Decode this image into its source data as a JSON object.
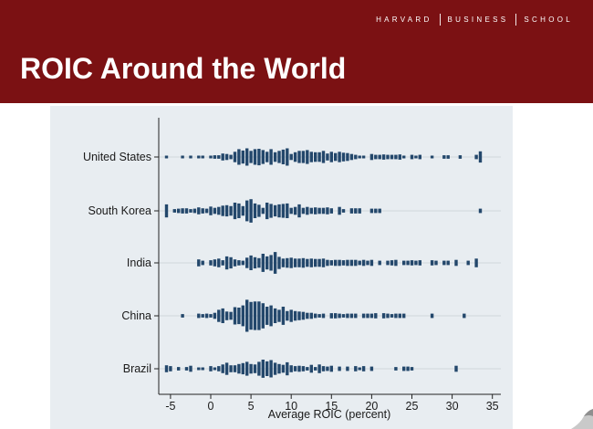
{
  "header": {
    "brand": [
      "HARVARD",
      "BUSINESS",
      "SCHOOL"
    ],
    "title": "ROIC Around the World",
    "color": "#7b1113"
  },
  "chart_data": {
    "type": "bar",
    "subtype": "dot-histogram",
    "xlabel": "Average ROIC (percent)",
    "ylabel": "",
    "title": "",
    "xlim": [
      -6,
      35
    ],
    "xticks": [
      -5,
      0,
      5,
      10,
      15,
      20,
      25,
      30,
      35
    ],
    "bin_width": 0.5,
    "bar_color": "#23476b",
    "grid": "horizontal",
    "categories": [
      "United States",
      "South Korea",
      "India",
      "China",
      "Brazil"
    ],
    "series": [
      {
        "name": "United States",
        "points": [
          [
            -5.5,
            0.1
          ],
          [
            -3.5,
            0.1
          ],
          [
            -2.5,
            0.1
          ],
          [
            -1.5,
            0.15
          ],
          [
            -1,
            0.15
          ],
          [
            0,
            0.15
          ],
          [
            0.5,
            0.2
          ],
          [
            1,
            0.2
          ],
          [
            1.5,
            0.4
          ],
          [
            2,
            0.35
          ],
          [
            2.5,
            0.25
          ],
          [
            3,
            0.6
          ],
          [
            3.5,
            0.9
          ],
          [
            4,
            0.75
          ],
          [
            4.5,
            1.0
          ],
          [
            5,
            0.7
          ],
          [
            5.5,
            0.9
          ],
          [
            6,
            0.95
          ],
          [
            6.5,
            0.8
          ],
          [
            7,
            0.6
          ],
          [
            7.5,
            0.9
          ],
          [
            8,
            0.55
          ],
          [
            8.5,
            0.7
          ],
          [
            9,
            0.85
          ],
          [
            9.5,
            1.0
          ],
          [
            10,
            0.35
          ],
          [
            10.5,
            0.55
          ],
          [
            11,
            0.7
          ],
          [
            11.5,
            0.7
          ],
          [
            12,
            0.8
          ],
          [
            12.5,
            0.6
          ],
          [
            13,
            0.55
          ],
          [
            13.5,
            0.55
          ],
          [
            14,
            0.7
          ],
          [
            14.5,
            0.4
          ],
          [
            15,
            0.6
          ],
          [
            15.5,
            0.45
          ],
          [
            16,
            0.6
          ],
          [
            16.5,
            0.5
          ],
          [
            17,
            0.45
          ],
          [
            17.5,
            0.35
          ],
          [
            18,
            0.25
          ],
          [
            18.5,
            0.15
          ],
          [
            19,
            0.1
          ],
          [
            20,
            0.35
          ],
          [
            20.5,
            0.25
          ],
          [
            21,
            0.25
          ],
          [
            21.5,
            0.3
          ],
          [
            22,
            0.25
          ],
          [
            22.5,
            0.25
          ],
          [
            23,
            0.25
          ],
          [
            23.5,
            0.3
          ],
          [
            24,
            0.15
          ],
          [
            25,
            0.25
          ],
          [
            25.5,
            0.15
          ],
          [
            26,
            0.25
          ],
          [
            27.5,
            0.15
          ],
          [
            29,
            0.2
          ],
          [
            29.5,
            0.2
          ],
          [
            31,
            0.2
          ],
          [
            33,
            0.25
          ],
          [
            33.5,
            0.65
          ]
        ]
      },
      {
        "name": "South Korea",
        "points": [
          [
            -5.5,
            0.75
          ],
          [
            -4.5,
            0.2
          ],
          [
            -4,
            0.25
          ],
          [
            -3.5,
            0.3
          ],
          [
            -3,
            0.3
          ],
          [
            -2.5,
            0.2
          ],
          [
            -2,
            0.25
          ],
          [
            -1.5,
            0.4
          ],
          [
            -1,
            0.3
          ],
          [
            -0.5,
            0.25
          ],
          [
            0,
            0.5
          ],
          [
            0.5,
            0.35
          ],
          [
            1,
            0.45
          ],
          [
            1.5,
            0.6
          ],
          [
            2,
            0.65
          ],
          [
            2.5,
            0.55
          ],
          [
            3,
            0.95
          ],
          [
            3.5,
            0.85
          ],
          [
            4,
            0.55
          ],
          [
            4.5,
            1.2
          ],
          [
            5,
            1.35
          ],
          [
            5.5,
            0.85
          ],
          [
            6,
            0.7
          ],
          [
            6.5,
            0.35
          ],
          [
            7,
            0.95
          ],
          [
            7.5,
            0.8
          ],
          [
            8,
            0.65
          ],
          [
            8.5,
            0.75
          ],
          [
            9,
            0.8
          ],
          [
            9.5,
            0.85
          ],
          [
            10,
            0.35
          ],
          [
            10.5,
            0.45
          ],
          [
            11,
            0.75
          ],
          [
            11.5,
            0.35
          ],
          [
            12,
            0.45
          ],
          [
            12.5,
            0.35
          ],
          [
            13,
            0.4
          ],
          [
            13.5,
            0.35
          ],
          [
            14,
            0.35
          ],
          [
            14.5,
            0.4
          ],
          [
            15,
            0.3
          ],
          [
            16,
            0.45
          ],
          [
            16.5,
            0.2
          ],
          [
            17.5,
            0.3
          ],
          [
            18,
            0.3
          ],
          [
            18.5,
            0.3
          ],
          [
            20,
            0.25
          ],
          [
            20.5,
            0.25
          ],
          [
            21,
            0.25
          ],
          [
            33.5,
            0.25
          ]
        ]
      },
      {
        "name": "India",
        "points": [
          [
            -1.5,
            0.4
          ],
          [
            -1,
            0.25
          ],
          [
            0,
            0.3
          ],
          [
            0.5,
            0.4
          ],
          [
            1,
            0.5
          ],
          [
            1.5,
            0.3
          ],
          [
            2,
            0.75
          ],
          [
            2.5,
            0.65
          ],
          [
            3,
            0.4
          ],
          [
            3.5,
            0.3
          ],
          [
            4,
            0.25
          ],
          [
            4.5,
            0.6
          ],
          [
            5,
            0.85
          ],
          [
            5.5,
            0.65
          ],
          [
            6,
            0.55
          ],
          [
            6.5,
            1.05
          ],
          [
            7,
            0.75
          ],
          [
            7.5,
            0.9
          ],
          [
            8,
            1.25
          ],
          [
            8.5,
            0.7
          ],
          [
            9,
            0.5
          ],
          [
            9.5,
            0.55
          ],
          [
            10,
            0.6
          ],
          [
            10.5,
            0.5
          ],
          [
            11,
            0.5
          ],
          [
            11.5,
            0.55
          ],
          [
            12,
            0.45
          ],
          [
            12.5,
            0.5
          ],
          [
            13,
            0.45
          ],
          [
            13.5,
            0.45
          ],
          [
            14,
            0.5
          ],
          [
            14.5,
            0.35
          ],
          [
            15,
            0.3
          ],
          [
            15.5,
            0.35
          ],
          [
            16,
            0.35
          ],
          [
            16.5,
            0.3
          ],
          [
            17,
            0.35
          ],
          [
            17.5,
            0.35
          ],
          [
            18,
            0.35
          ],
          [
            18.5,
            0.25
          ],
          [
            19,
            0.35
          ],
          [
            19.5,
            0.25
          ],
          [
            20,
            0.35
          ],
          [
            21,
            0.25
          ],
          [
            22,
            0.25
          ],
          [
            22.5,
            0.3
          ],
          [
            23,
            0.35
          ],
          [
            24,
            0.25
          ],
          [
            24.5,
            0.25
          ],
          [
            25,
            0.3
          ],
          [
            25.5,
            0.25
          ],
          [
            26,
            0.3
          ],
          [
            27.5,
            0.3
          ],
          [
            28,
            0.25
          ],
          [
            29,
            0.25
          ],
          [
            29.5,
            0.25
          ],
          [
            30.5,
            0.35
          ],
          [
            32,
            0.25
          ],
          [
            33,
            0.5
          ]
        ]
      },
      {
        "name": "China",
        "points": [
          [
            -3.5,
            0.2
          ],
          [
            -1.5,
            0.25
          ],
          [
            -1,
            0.2
          ],
          [
            -0.5,
            0.25
          ],
          [
            0,
            0.2
          ],
          [
            0.5,
            0.35
          ],
          [
            1,
            0.7
          ],
          [
            1.5,
            0.85
          ],
          [
            2,
            0.5
          ],
          [
            2.5,
            0.45
          ],
          [
            3,
            1.0
          ],
          [
            3.5,
            0.95
          ],
          [
            4,
            1.2
          ],
          [
            4.5,
            1.85
          ],
          [
            5,
            1.6
          ],
          [
            5.5,
            1.65
          ],
          [
            6,
            1.65
          ],
          [
            6.5,
            1.45
          ],
          [
            7,
            1.05
          ],
          [
            7.5,
            1.2
          ],
          [
            8,
            0.85
          ],
          [
            8.5,
            0.7
          ],
          [
            9,
            1.05
          ],
          [
            9.5,
            0.55
          ],
          [
            10,
            0.7
          ],
          [
            10.5,
            0.55
          ],
          [
            11,
            0.5
          ],
          [
            11.5,
            0.45
          ],
          [
            12,
            0.35
          ],
          [
            12.5,
            0.35
          ],
          [
            13,
            0.25
          ],
          [
            13.5,
            0.2
          ],
          [
            14,
            0.25
          ],
          [
            15,
            0.3
          ],
          [
            15.5,
            0.3
          ],
          [
            16,
            0.25
          ],
          [
            16.5,
            0.2
          ],
          [
            17,
            0.25
          ],
          [
            17.5,
            0.25
          ],
          [
            18,
            0.25
          ],
          [
            19,
            0.25
          ],
          [
            19.5,
            0.25
          ],
          [
            20,
            0.25
          ],
          [
            20.5,
            0.3
          ],
          [
            21.5,
            0.3
          ],
          [
            22,
            0.25
          ],
          [
            22.5,
            0.2
          ],
          [
            23,
            0.25
          ],
          [
            23.5,
            0.25
          ],
          [
            24,
            0.25
          ],
          [
            27.5,
            0.25
          ],
          [
            31.5,
            0.25
          ]
        ]
      },
      {
        "name": "Brazil",
        "points": [
          [
            -5.5,
            0.4
          ],
          [
            -5,
            0.3
          ],
          [
            -4,
            0.2
          ],
          [
            -3,
            0.2
          ],
          [
            -2.5,
            0.35
          ],
          [
            -1.5,
            0.15
          ],
          [
            -1,
            0.15
          ],
          [
            0,
            0.3
          ],
          [
            0.5,
            0.15
          ],
          [
            1,
            0.3
          ],
          [
            1.5,
            0.5
          ],
          [
            2,
            0.7
          ],
          [
            2.5,
            0.4
          ],
          [
            3,
            0.4
          ],
          [
            3.5,
            0.55
          ],
          [
            4,
            0.65
          ],
          [
            4.5,
            0.8
          ],
          [
            5,
            0.55
          ],
          [
            5.5,
            0.5
          ],
          [
            6,
            0.8
          ],
          [
            6.5,
            1.05
          ],
          [
            7,
            0.85
          ],
          [
            7.5,
            1.0
          ],
          [
            8,
            0.7
          ],
          [
            8.5,
            0.55
          ],
          [
            9,
            0.45
          ],
          [
            9.5,
            0.75
          ],
          [
            10,
            0.4
          ],
          [
            10.5,
            0.3
          ],
          [
            11,
            0.35
          ],
          [
            11.5,
            0.3
          ],
          [
            12,
            0.2
          ],
          [
            12.5,
            0.45
          ],
          [
            13,
            0.2
          ],
          [
            13.5,
            0.5
          ],
          [
            14,
            0.3
          ],
          [
            14.5,
            0.25
          ],
          [
            15,
            0.35
          ],
          [
            16,
            0.25
          ],
          [
            17,
            0.25
          ],
          [
            18,
            0.3
          ],
          [
            18.5,
            0.15
          ],
          [
            19,
            0.3
          ],
          [
            20,
            0.25
          ],
          [
            23,
            0.2
          ],
          [
            24,
            0.25
          ],
          [
            24.5,
            0.25
          ],
          [
            25,
            0.2
          ],
          [
            30.5,
            0.35
          ]
        ]
      }
    ]
  }
}
